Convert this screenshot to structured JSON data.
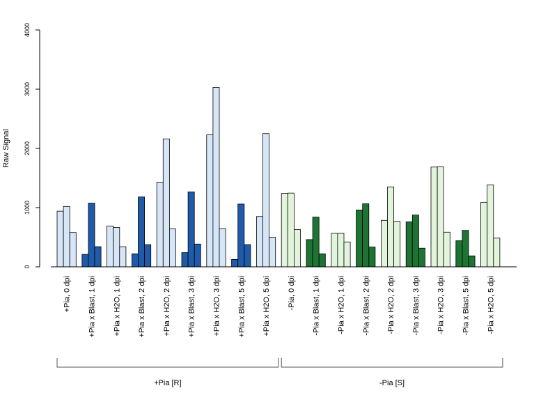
{
  "chart_data": {
    "type": "bar",
    "ylabel": "Raw Signal",
    "ylim": [
      0,
      4000
    ],
    "yticks": [
      0,
      1000,
      2000,
      3000,
      4000
    ],
    "colors": {
      "pia_r_light": "#d6e6f7",
      "pia_r_dark": "#1f5ba8",
      "pia_s_light": "#e2f5dc",
      "pia_s_dark": "#1e7433",
      "bar_border": "#000000"
    },
    "categories": [
      "+Pia, 0 dpi",
      "+Pia x Blast, 1 dpi",
      "+Pia x H2O, 1 dpi",
      "+Pia x Blast, 2 dpi",
      "+Pia x H2O, 2 dpi",
      "+Pia x Blast, 3 dpi",
      "+Pia x H2O, 3 dpi",
      "+Pia x Blast, 5 dpi",
      "+Pia x H2O, 5 dpi",
      "-Pia, 0 dpi",
      "-Pia x Blast, 1 dpi",
      "-Pia x H2O, 1 dpi",
      "-Pia x Blast, 2 dpi",
      "-Pia x H2O, 2 dpi",
      "-Pia x Blast, 3 dpi",
      "-Pia x H2O, 3 dpi",
      "-Pia x Blast, 5 dpi",
      "-Pia x H2O, 5 dpi"
    ],
    "bar_colors": [
      "pia_r_light",
      "pia_r_dark",
      "pia_r_light",
      "pia_r_dark",
      "pia_r_light",
      "pia_r_dark",
      "pia_r_light",
      "pia_r_dark",
      "pia_r_light",
      "pia_s_light",
      "pia_s_dark",
      "pia_s_light",
      "pia_s_dark",
      "pia_s_light",
      "pia_s_dark",
      "pia_s_light",
      "pia_s_dark",
      "pia_s_light"
    ],
    "replicates": [
      [
        940,
        1020,
        580
      ],
      [
        210,
        1075,
        340
      ],
      [
        690,
        665,
        340
      ],
      [
        220,
        1180,
        375
      ],
      [
        1430,
        2160,
        640
      ],
      [
        240,
        1265,
        385
      ],
      [
        2230,
        3030,
        645
      ],
      [
        125,
        1060,
        375
      ],
      [
        850,
        2250,
        500
      ],
      [
        1240,
        1245,
        630
      ],
      [
        460,
        840,
        220
      ],
      [
        565,
        565,
        420
      ],
      [
        960,
        1065,
        335
      ],
      [
        785,
        1350,
        770
      ],
      [
        760,
        875,
        315
      ],
      [
        1685,
        1690,
        585
      ],
      [
        440,
        615,
        185
      ],
      [
        1090,
        1385,
        485
      ]
    ],
    "groups": [
      {
        "label": "+Pia [R]",
        "from": 0,
        "to": 8
      },
      {
        "label": "-Pia [S]",
        "from": 9,
        "to": 17
      }
    ]
  }
}
